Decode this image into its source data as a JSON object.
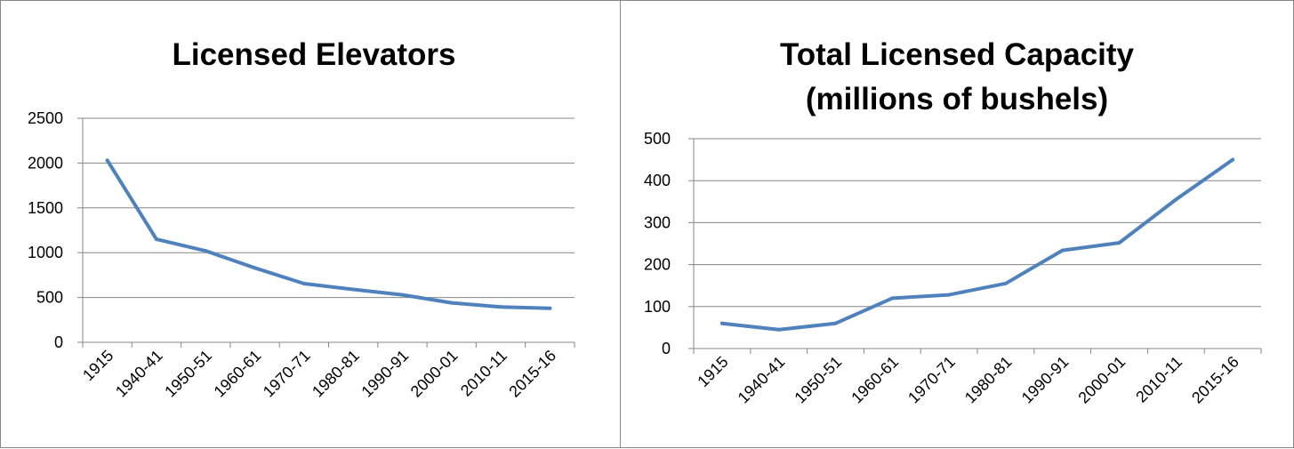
{
  "chart_data": [
    {
      "type": "line",
      "title": "Licensed Elevators",
      "title_lines": [
        "Licensed Elevators"
      ],
      "categories": [
        "1915",
        "1940-41",
        "1950-51",
        "1960-61",
        "1970-71",
        "1980-81",
        "1990-91",
        "2000-01",
        "2010-11",
        "2015-16"
      ],
      "y_ticks": [
        "0",
        "500",
        "1000",
        "1500",
        "2000",
        "2500"
      ],
      "series": [
        {
          "values": [
            2030,
            1150,
            1020,
            830,
            655,
            590,
            530,
            440,
            395,
            380
          ]
        }
      ],
      "ylim": [
        0,
        2500
      ],
      "xlabel": "",
      "ylabel": "",
      "grid": true,
      "legend": "none",
      "line_color": "#4F81BD"
    },
    {
      "type": "line",
      "title": "Total Licensed Capacity (millions of bushels)",
      "title_lines": [
        "Total Licensed Capacity",
        "(millions of bushels)"
      ],
      "categories": [
        "1915",
        "1940-41",
        "1950-51",
        "1960-61",
        "1970-71",
        "1980-81",
        "1990-91",
        "2000-01",
        "2010-11",
        "2015-16"
      ],
      "y_ticks": [
        "0",
        "100",
        "200",
        "300",
        "400",
        "500"
      ],
      "series": [
        {
          "values": [
            60,
            45,
            60,
            120,
            128,
            155,
            234,
            252,
            355,
            450
          ]
        }
      ],
      "ylim": [
        0,
        500
      ],
      "xlabel": "",
      "ylabel": "",
      "grid": true,
      "legend": "none",
      "line_color": "#4F81BD"
    }
  ]
}
